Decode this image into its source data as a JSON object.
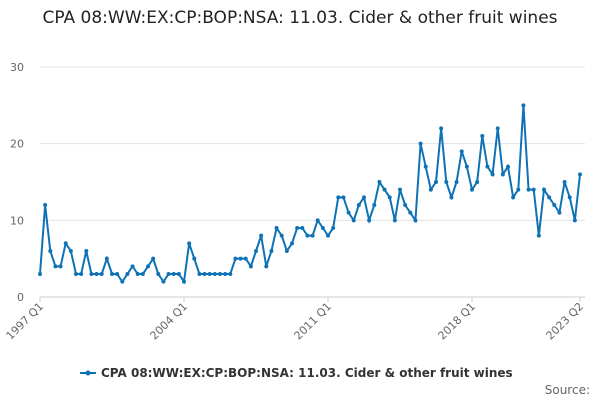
{
  "chart_data": {
    "type": "line",
    "title": "CPA 08:WW:EX:CP:BOP:NSA: 11.03. Cider & other fruit wines",
    "categories": [
      "1997 Q1",
      null,
      null,
      null,
      null,
      null,
      null,
      null,
      null,
      null,
      null,
      null,
      null,
      null,
      null,
      null,
      null,
      null,
      null,
      null,
      null,
      null,
      null,
      null,
      null,
      null,
      null,
      null,
      "2004 Q1",
      null,
      null,
      null,
      null,
      null,
      null,
      null,
      null,
      null,
      null,
      null,
      null,
      null,
      null,
      null,
      null,
      null,
      null,
      null,
      null,
      null,
      null,
      null,
      null,
      null,
      null,
      null,
      "2011 Q1",
      null,
      null,
      null,
      null,
      null,
      null,
      null,
      null,
      null,
      null,
      null,
      null,
      null,
      null,
      null,
      null,
      null,
      null,
      null,
      null,
      null,
      null,
      null,
      null,
      null,
      null,
      null,
      "2018 Q1",
      null,
      null,
      null,
      null,
      null,
      null,
      null,
      null,
      null,
      null,
      null,
      null,
      null,
      null,
      null,
      null,
      null,
      null,
      null,
      null,
      "2023 Q2"
    ],
    "series": [
      {
        "name": "CPA 08:WW:EX:CP:BOP:NSA: 11.03. Cider & other fruit wines",
        "color": "#0f72b5",
        "values": [
          3,
          12,
          6,
          4,
          4,
          7,
          6,
          3,
          3,
          6,
          3,
          3,
          3,
          5,
          3,
          3,
          2,
          3,
          4,
          3,
          3,
          4,
          5,
          3,
          2,
          3,
          3,
          3,
          2,
          7,
          5,
          3,
          3,
          3,
          3,
          3,
          3,
          3,
          5,
          5,
          5,
          4,
          6,
          8,
          4,
          6,
          9,
          8,
          6,
          7,
          9,
          9,
          8,
          8,
          10,
          9,
          8,
          9,
          13,
          13,
          11,
          10,
          12,
          13,
          10,
          12,
          15,
          14,
          13,
          10,
          14,
          12,
          11,
          10,
          20,
          17,
          14,
          15,
          22,
          15,
          13,
          15,
          19,
          17,
          14,
          15,
          21,
          17,
          16,
          22,
          16,
          17,
          13,
          14,
          25,
          14,
          14,
          8,
          14,
          13,
          12,
          11,
          15,
          13,
          10,
          16
        ]
      }
    ],
    "ylim": [
      0,
      30
    ],
    "yticks": [
      0,
      10,
      20,
      30
    ],
    "grid": true,
    "legend": "bottom",
    "source": "Source:"
  }
}
